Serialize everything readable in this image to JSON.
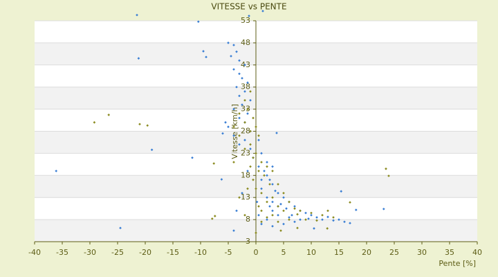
{
  "chart_data": {
    "type": "scatter",
    "title": "VITESSE vs PENTE",
    "xlabel": "Pente [%]",
    "ylabel": "Vitesse [km/h]",
    "xlim": [
      -40,
      40
    ],
    "ylim": [
      3,
      53
    ],
    "xticks": [
      -40,
      -35,
      -30,
      -25,
      -20,
      -15,
      -10,
      -5,
      0,
      5,
      10,
      15,
      20,
      25,
      30,
      35,
      40
    ],
    "yticks": [
      3,
      8,
      13,
      18,
      23,
      28,
      33,
      38,
      43,
      48,
      53
    ],
    "grid": true,
    "series": [
      {
        "color": "#3b7fd4",
        "x": [
          -21.5,
          -10.4,
          1.25,
          -1.25,
          -21.2,
          -9.5,
          -9,
          -18.8,
          -11.5,
          -36.1,
          -24.5,
          -6.2,
          23.1,
          15.4,
          3.75,
          18.1,
          -5,
          -4,
          -3.5,
          -4.5,
          -3,
          -2,
          -4,
          -3,
          -2.5,
          -1.5,
          -3.5,
          -2,
          -3,
          -1,
          -2.5,
          -4,
          -1.5,
          -3,
          -2,
          -5,
          -1,
          -4,
          -2,
          -3,
          -1,
          -0.5,
          -6,
          -5.5,
          0.5,
          1,
          0.5,
          1.5,
          2,
          2.5,
          3,
          1,
          3.5,
          4,
          2,
          5,
          3,
          4.5,
          6,
          2.5,
          7,
          5.5,
          8,
          3,
          9,
          4,
          10,
          6,
          11,
          2,
          12,
          7,
          14,
          16,
          17,
          1,
          5,
          3,
          8,
          10.5,
          -4,
          -3.5,
          -2.5,
          -1.5,
          0.2,
          0.5,
          4,
          6.5,
          9.5,
          13,
          15,
          2,
          3,
          1
        ],
        "values": [
          54.3,
          52.8,
          55.2,
          54.1,
          44.5,
          46.1,
          44.8,
          23.8,
          22,
          19,
          6.1,
          17.1,
          10.4,
          14.4,
          27.6,
          10.2,
          48,
          47.5,
          46,
          45,
          44,
          43,
          42,
          41,
          40,
          39,
          38,
          37,
          36,
          35,
          34,
          33,
          32,
          31,
          30,
          29,
          28,
          27,
          26,
          25,
          24,
          22,
          27.5,
          30,
          26,
          23,
          20,
          19,
          18,
          17,
          16,
          15,
          14.5,
          14,
          13,
          13,
          12,
          11.5,
          12,
          11,
          11,
          10.5,
          10,
          10,
          9.5,
          9,
          9,
          8.5,
          8.5,
          8,
          8,
          7.5,
          7.8,
          7.5,
          7.2,
          7,
          7,
          6.5,
          8,
          6,
          5.5,
          10,
          14,
          19,
          12,
          9,
          11,
          9,
          8.2,
          8.6,
          8,
          21,
          20,
          17
        ]
      },
      {
        "color": "#8c8c22",
        "x": [
          -26.6,
          -29.2,
          -21,
          -19.6,
          23.5,
          24,
          -7.6,
          -7.4,
          -7.9,
          7.5,
          12.9,
          17,
          -1,
          -2,
          -1.5,
          -3,
          -0.5,
          -2,
          -4,
          -1,
          -3,
          0,
          0.5,
          -1,
          -2,
          0,
          -0.5,
          1,
          -1,
          0.5,
          2,
          1.5,
          3,
          -0.5,
          2.5,
          0,
          4,
          1,
          3,
          5,
          2,
          6,
          0.5,
          4,
          7,
          1,
          5,
          8,
          3,
          10,
          12,
          2,
          6,
          9,
          14,
          1,
          4,
          11,
          -2,
          -3,
          -4,
          -1.5,
          0,
          4.5,
          7.5,
          13
        ],
        "values": [
          31.7,
          30,
          29.6,
          29.3,
          19.5,
          17.9,
          20.7,
          8.8,
          8.2,
          6.1,
          6,
          11.9,
          37,
          35,
          33,
          32,
          31,
          30,
          29,
          28,
          27,
          29,
          27,
          25,
          24,
          23,
          22,
          21,
          20,
          19,
          20,
          18,
          19,
          17,
          16,
          15,
          16,
          14,
          13,
          14,
          12,
          12,
          11,
          11,
          10.5,
          10,
          10,
          10,
          9,
          9.5,
          9,
          8.5,
          8,
          8,
          8.5,
          7.5,
          7.5,
          7.8,
          9,
          13,
          21,
          15,
          5,
          5.5,
          9.2,
          10
        ]
      }
    ]
  }
}
